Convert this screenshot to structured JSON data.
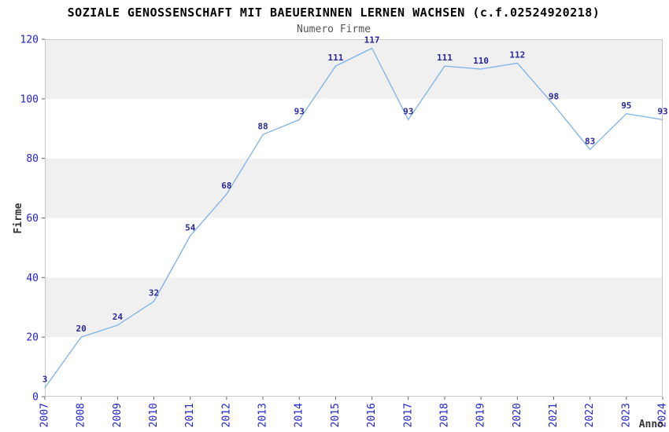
{
  "header": {
    "title": "SOZIALE GENOSSENSCHAFT MIT BAEUERINNEN LERNEN WACHSEN (c.f.02524920218)",
    "subtitle": "Numero Firme"
  },
  "chart_data": {
    "type": "line",
    "title": "SOZIALE GENOSSENSCHAFT MIT BAEUERINNEN LERNEN WACHSEN (c.f.02524920218)",
    "subtitle": "Numero Firme",
    "xlabel": "Anno",
    "ylabel": "Firme",
    "categories": [
      "2007",
      "2008",
      "2009",
      "2010",
      "2011",
      "2012",
      "2013",
      "2014",
      "2015",
      "2016",
      "2017",
      "2018",
      "2019",
      "2020",
      "2021",
      "2022",
      "2023",
      "2024"
    ],
    "values": [
      3,
      20,
      24,
      32,
      54,
      68,
      88,
      93,
      111,
      117,
      93,
      111,
      110,
      112,
      98,
      83,
      95,
      93
    ],
    "ylim": [
      0,
      120
    ],
    "ytick_step": 20,
    "yticks": [
      0,
      20,
      40,
      60,
      80,
      100,
      120
    ],
    "grid": "alternating-horizontal-bands",
    "legend_position": "none",
    "colors": {
      "line": "#7cb1e8",
      "point_label": "#28289b",
      "tick_label": "#2222cc",
      "band": "#f0f0f0",
      "plot_border": "#c8c8c8",
      "tick_mark": "#666666",
      "title": "#000000",
      "subtitle": "#555555",
      "axis_label": "#333333",
      "background": "#ffffff"
    }
  }
}
